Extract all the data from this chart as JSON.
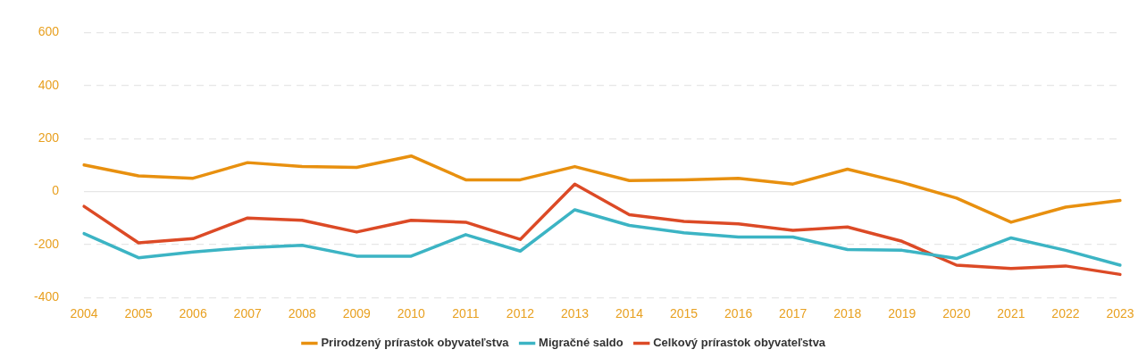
{
  "chart_data": {
    "type": "line",
    "categories": [
      "2004",
      "2005",
      "2006",
      "2007",
      "2008",
      "2009",
      "2010",
      "2011",
      "2012",
      "2013",
      "2014",
      "2015",
      "2016",
      "2017",
      "2018",
      "2019",
      "2020",
      "2021",
      "2022",
      "2023"
    ],
    "series": [
      {
        "name": "Prirodzený prírastok obyvateľstva",
        "color": "#e8900f",
        "values": [
          100,
          59,
          50,
          109,
          94,
          91,
          134,
          44,
          44,
          94,
          41,
          44,
          50,
          28,
          84,
          34,
          -25,
          -116,
          -59,
          -34
        ]
      },
      {
        "name": "Migračné saldo",
        "color": "#3cb4c4",
        "values": [
          -159,
          -250,
          -228,
          -212,
          -203,
          -244,
          -244,
          -163,
          -225,
          -69,
          -128,
          -156,
          -172,
          -172,
          -219,
          -222,
          -253,
          -175,
          -222,
          -278
        ]
      },
      {
        "name": "Celkový prírastok obyvateľstva",
        "color": "#dc4a26",
        "values": [
          -56,
          -194,
          -178,
          -100,
          -109,
          -153,
          -109,
          -116,
          -181,
          28,
          -88,
          -113,
          -122,
          -147,
          -134,
          -188,
          -278,
          -291,
          -281,
          -313
        ]
      }
    ],
    "ylim": [
      -400,
      600
    ],
    "yticks": [
      -400,
      -200,
      0,
      200,
      400,
      600
    ],
    "grid": "y",
    "legend": "bottom",
    "marker": "none",
    "line_style": "solid"
  }
}
